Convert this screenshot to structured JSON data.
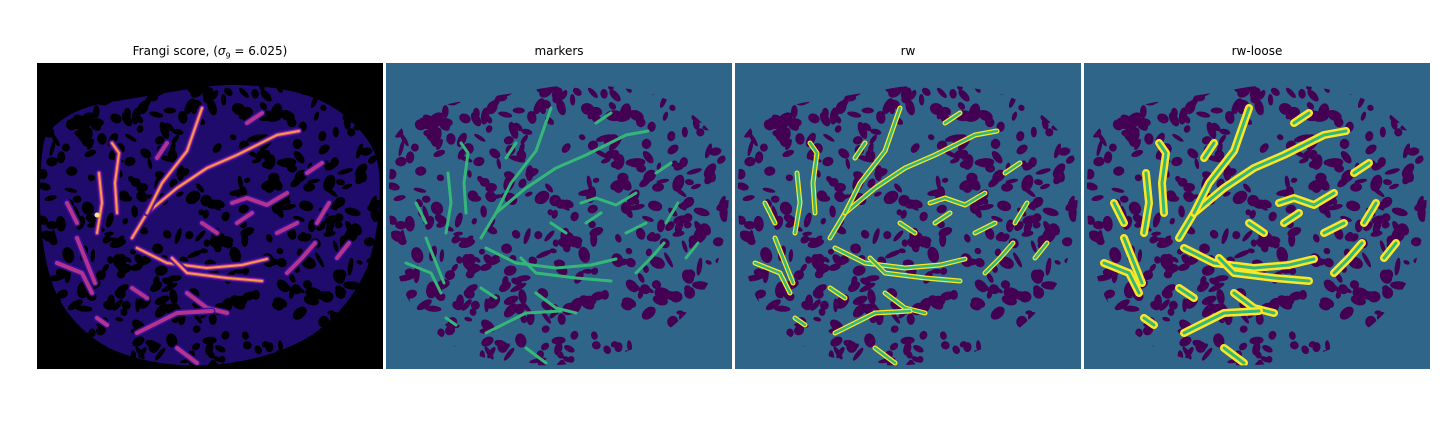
{
  "figure": {
    "panels": [
      {
        "title_prefix": "Frangi score, (",
        "title_sigma": "σ",
        "title_sub": "9",
        "title_suffix": " = 6.025)"
      },
      {
        "title": "markers"
      },
      {
        "title": "rw"
      },
      {
        "title": "rw-loose"
      }
    ]
  },
  "colors": {
    "frangi_background": "#000000",
    "frangi_tissue": "#1e0b6b",
    "frangi_low": "#3b0f9a",
    "frangi_mid": "#b3338f",
    "frangi_high": "#f59a4a",
    "frangi_peak": "#fde58a",
    "seg_background": "#2f6588",
    "seg_tissue": "#440154",
    "seg_marker": "#35b779",
    "seg_vessel": "#fde725"
  }
}
